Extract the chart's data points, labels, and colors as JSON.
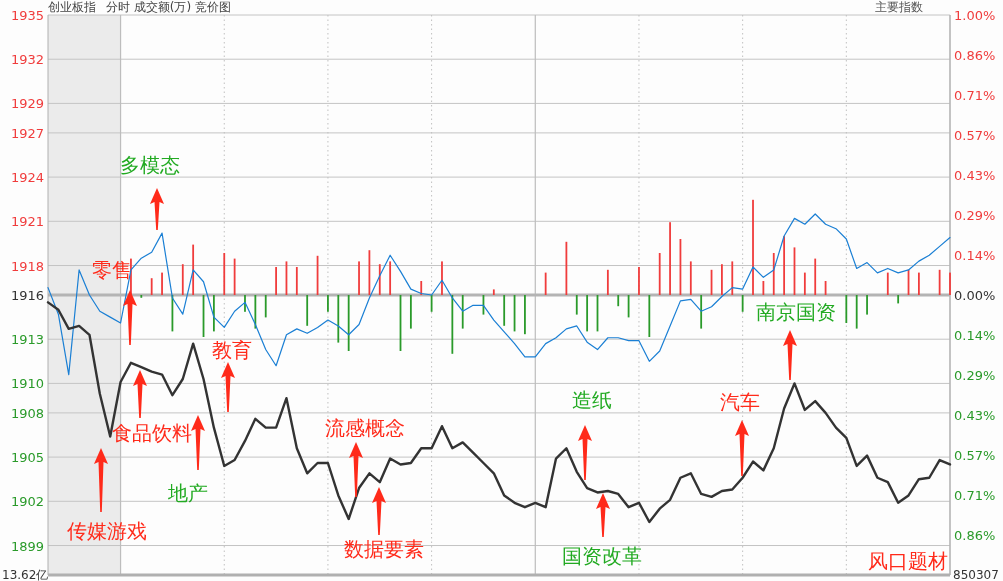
{
  "chart_data": {
    "type": "line",
    "title": "创业板指",
    "subtitle": "分时 成交额(万) 竞价图",
    "categories": [
      null,
      null,
      null,
      null,
      null,
      null,
      null,
      null,
      null,
      null,
      null,
      null,
      null,
      null,
      null,
      null,
      null,
      null,
      null,
      null,
      null,
      null,
      null,
      null,
      null,
      null,
      null,
      null,
      null,
      null,
      null,
      null,
      null,
      null,
      null,
      null,
      null,
      null,
      null,
      null,
      null,
      null,
      null,
      null,
      null,
      null,
      null,
      null,
      null,
      null,
      null,
      null,
      null,
      null,
      null,
      null,
      null,
      null,
      null,
      null,
      null,
      null,
      null,
      null,
      null,
      null,
      null,
      null,
      null,
      null,
      null,
      null,
      null,
      null,
      null,
      null,
      null,
      null,
      null,
      null,
      null,
      null,
      null,
      null,
      null,
      null,
      null,
      null
    ],
    "series": [
      {
        "type": "bar",
        "axis": "y2",
        "color": "#f03c3c",
        "values": [
          null,
          null,
          null,
          null,
          null,
          null,
          null,
          null,
          0.13,
          null,
          0.06,
          0.08,
          null,
          0.11,
          0.18,
          null,
          null,
          0.15,
          0.13,
          null,
          null,
          null,
          0.1,
          0.12,
          0.1,
          null,
          0.14,
          null,
          null,
          null,
          0.12,
          0.16,
          0.11,
          0.12,
          null,
          null,
          0.05,
          null,
          0.12,
          null,
          null,
          null,
          null,
          0.02,
          null,
          null,
          null,
          null,
          0.08,
          null,
          0.19,
          null,
          null,
          null,
          0.09,
          null,
          null,
          0.1,
          null,
          0.15,
          0.26,
          0.2,
          0.12,
          null,
          0.09,
          0.11,
          0.12,
          null,
          0.34,
          0.05,
          0.15,
          0.21,
          0.17,
          0.08,
          0.13,
          0.05,
          null,
          null,
          null,
          null,
          null,
          0.08,
          null,
          0.09,
          0.08,
          null,
          0.09,
          0.08
        ]
      },
      {
        "type": "bar",
        "axis": "y2",
        "color": "#2a9a2a",
        "values": [
          null,
          null,
          null,
          null,
          null,
          null,
          null,
          null,
          null,
          -0.01,
          null,
          null,
          -0.13,
          null,
          null,
          -0.15,
          -0.13,
          null,
          null,
          -0.06,
          -0.12,
          -0.08,
          null,
          null,
          null,
          -0.11,
          null,
          -0.06,
          -0.17,
          -0.2,
          null,
          null,
          null,
          null,
          -0.2,
          -0.12,
          null,
          -0.06,
          null,
          -0.21,
          -0.12,
          null,
          -0.07,
          null,
          -0.11,
          -0.13,
          -0.14,
          null,
          null,
          null,
          null,
          -0.07,
          -0.13,
          -0.13,
          null,
          -0.04,
          -0.08,
          null,
          -0.15,
          null,
          null,
          null,
          null,
          -0.12,
          null,
          null,
          null,
          -0.06,
          null,
          null,
          null,
          null,
          null,
          null,
          null,
          null,
          null,
          -0.1,
          -0.12,
          -0.07,
          null,
          null,
          -0.03,
          null,
          null,
          null,
          null,
          null
        ]
      },
      {
        "color": "#1a7fd4",
        "values": [
          1916.5,
          1914.7,
          1910.6,
          1917.7,
          1916.0,
          1914.9,
          1914.5,
          1914.1,
          1917.7,
          1918.5,
          1918.9,
          1920.2,
          1915.8,
          1914.7,
          1917.7,
          1916.9,
          1914.5,
          1913.8,
          1914.9,
          1915.5,
          1914.0,
          1912.3,
          1911.2,
          1913.3,
          1913.7,
          1913.4,
          1913.8,
          1914.3,
          1913.9,
          1913.3,
          1914.0,
          1915.8,
          1917.3,
          1918.7,
          1917.6,
          1916.4,
          1916.1,
          1916.0,
          1917.0,
          1915.8,
          1914.9,
          1915.3,
          1915.3,
          1914.3,
          1913.5,
          1912.7,
          1911.8,
          1911.8,
          1912.7,
          1913.1,
          1913.7,
          1913.9,
          1912.8,
          1912.3,
          1913.1,
          1913.1,
          1912.9,
          1912.9,
          1911.5,
          1912.2,
          1913.9,
          1915.6,
          1915.7,
          1914.9,
          1915.2,
          1915.9,
          1916.5,
          1916.4,
          1917.9,
          1917.2,
          1917.7,
          1920.0,
          1921.2,
          1920.8,
          1921.5,
          1920.8,
          1920.5,
          1919.8,
          1917.8,
          1918.2,
          1917.5,
          1917.8,
          1917.5,
          1917.7,
          1918.3,
          1918.7,
          1919.3,
          1919.9
        ]
      },
      {
        "color": "#333333",
        "values": [
          1915.5,
          1915.0,
          1913.7,
          1913.9,
          1913.3,
          1909.3,
          1906.4,
          1910.1,
          1911.4,
          1911.1,
          1910.8,
          1910.6,
          1909.2,
          1910.3,
          1912.7,
          1910.3,
          1907.0,
          1904.4,
          1904.8,
          1906.1,
          1907.6,
          1907.0,
          1907.0,
          1909.0,
          1905.6,
          1903.9,
          1904.6,
          1904.6,
          1902.4,
          1900.8,
          1902.9,
          1903.9,
          1903.3,
          1904.9,
          1904.5,
          1904.6,
          1905.6,
          1905.6,
          1907.1,
          1905.6,
          1906.0,
          1905.3,
          1904.6,
          1903.9,
          1902.4,
          1901.9,
          1901.6,
          1901.9,
          1901.6,
          1904.9,
          1905.6,
          1904.0,
          1902.9,
          1902.6,
          1902.7,
          1902.5,
          1901.6,
          1901.9,
          1900.6,
          1901.5,
          1902.1,
          1903.6,
          1903.9,
          1902.5,
          1902.3,
          1902.7,
          1902.8,
          1903.6,
          1904.7,
          1904.1,
          1905.6,
          1908.3,
          1910.0,
          1908.2,
          1908.8,
          1908.0,
          1907.0,
          1906.3,
          1904.4,
          1905.1,
          1903.6,
          1903.3,
          1901.9,
          1902.4,
          1903.5,
          1903.6,
          1904.8,
          1904.5
        ]
      }
    ],
    "ylim": [
      1897,
      1935
    ],
    "yticks": [
      1899,
      1902,
      1905,
      1908,
      1910,
      1913,
      1916,
      1918,
      1921,
      1924,
      1927,
      1929,
      1932,
      1935
    ],
    "y2lim": [
      -1.0,
      1.0
    ],
    "y2ticks": [
      {
        "value": -0.8571,
        "label": "0.86%"
      },
      {
        "value": -0.7143,
        "label": "0.71%"
      },
      {
        "value": -0.5714,
        "label": "0.57%"
      },
      {
        "value": -0.4286,
        "label": "0.43%"
      },
      {
        "value": -0.2857,
        "label": "0.29%"
      },
      {
        "value": -0.1429,
        "label": "0.14%"
      },
      {
        "value": 0,
        "label": "0.00%"
      },
      {
        "value": 0.1429,
        "label": "0.14%"
      },
      {
        "value": 0.2857,
        "label": "0.29%"
      },
      {
        "value": 0.4286,
        "label": "0.43%"
      },
      {
        "value": 0.5714,
        "label": "0.57%"
      },
      {
        "value": 0.7143,
        "label": "0.71%"
      },
      {
        "value": 0.8571,
        "label": "0.86%"
      },
      {
        "value": 1.0,
        "label": "1.00%"
      }
    ],
    "grid": true,
    "ref_lines": [
      {
        "axis": "y",
        "value": 1916,
        "color": "#b4b4b4"
      }
    ],
    "annotations": [
      "主要指数",
      "多模态",
      "零售",
      "食品饮料",
      "传媒游戏",
      "地产",
      "教育",
      "流感概念",
      "数据要素",
      "造纸",
      "国资改革",
      "汽车",
      "南京国资",
      "风口题材",
      "13.62亿",
      "850307"
    ]
  }
}
